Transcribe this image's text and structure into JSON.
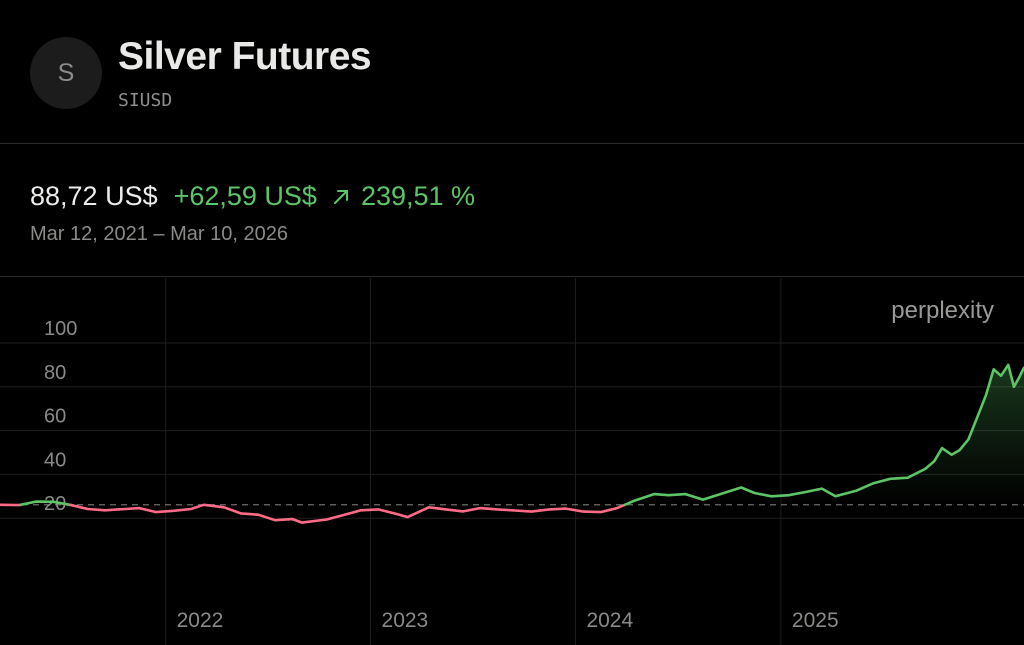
{
  "header": {
    "avatar_letter": "S",
    "title": "Silver Futures",
    "ticker": "SIUSD"
  },
  "summary": {
    "price": "88,72 US$",
    "change": "+62,59 US$",
    "arrow_icon": "arrow-up-right-icon",
    "percent": "239,51 %",
    "date_range": "Mar 12, 2021 – Mar 10, 2026"
  },
  "watermark": "perplexity",
  "colors": {
    "up": "#5cc566",
    "down": "#ff6b86",
    "grid": "#1e1e1e",
    "baseline": "#8a8a88"
  },
  "chart_data": {
    "type": "line",
    "title": "",
    "xlabel": "",
    "ylabel": "",
    "x_ticks": [
      "2022",
      "2023",
      "2024",
      "2025"
    ],
    "y_ticks": [
      20,
      40,
      60,
      80,
      100
    ],
    "x_range": [
      "2021-03-12",
      "2026-03-10"
    ],
    "ylim": [
      0,
      110
    ],
    "baseline": 26.13,
    "grid": true,
    "series": [
      {
        "name": "",
        "x": [
          "2021-03-12",
          "2021-04-15",
          "2021-05-15",
          "2021-06-15",
          "2021-07-15",
          "2021-08-15",
          "2021-09-15",
          "2021-10-15",
          "2021-11-15",
          "2021-12-15",
          "2022-01-15",
          "2022-02-15",
          "2022-03-10",
          "2022-04-15",
          "2022-05-15",
          "2022-06-15",
          "2022-07-15",
          "2022-08-15",
          "2022-09-01",
          "2022-10-15",
          "2022-11-15",
          "2022-12-15",
          "2023-01-15",
          "2023-02-15",
          "2023-03-08",
          "2023-04-15",
          "2023-05-15",
          "2023-06-15",
          "2023-07-15",
          "2023-08-15",
          "2023-09-15",
          "2023-10-15",
          "2023-11-15",
          "2023-12-15",
          "2024-01-15",
          "2024-02-15",
          "2024-03-15",
          "2024-04-15",
          "2024-05-20",
          "2024-06-15",
          "2024-07-15",
          "2024-08-15",
          "2024-09-15",
          "2024-10-22",
          "2024-11-15",
          "2024-12-15",
          "2025-01-15",
          "2025-02-15",
          "2025-03-15",
          "2025-04-08",
          "2025-05-15",
          "2025-06-15",
          "2025-07-15",
          "2025-08-15",
          "2025-09-15",
          "2025-10-01",
          "2025-10-15",
          "2025-11-01",
          "2025-11-15",
          "2025-12-01",
          "2025-12-15",
          "2026-01-01",
          "2026-01-15",
          "2026-01-28",
          "2026-02-10",
          "2026-02-20",
          "2026-03-01",
          "2026-03-10"
        ],
        "y": [
          26.1,
          26.0,
          27.6,
          27.5,
          26.1,
          24.2,
          23.6,
          24.1,
          24.6,
          22.8,
          23.4,
          24.2,
          26.1,
          25.0,
          22.2,
          21.6,
          19.1,
          19.6,
          18.0,
          19.4,
          21.5,
          23.6,
          24.0,
          22.0,
          20.5,
          25.0,
          24.0,
          23.1,
          24.6,
          24.0,
          23.5,
          23.0,
          24.0,
          24.4,
          23.0,
          22.8,
          24.6,
          28.0,
          31.0,
          30.5,
          31.0,
          28.5,
          31.0,
          34.0,
          31.5,
          30.0,
          30.5,
          32.0,
          33.5,
          30.0,
          32.5,
          36.0,
          38.0,
          38.5,
          42.5,
          46.0,
          52.0,
          49.0,
          51.0,
          56.0,
          65.0,
          76.0,
          88.0,
          85.0,
          90.0,
          80.0,
          84.0,
          88.72
        ]
      }
    ]
  }
}
